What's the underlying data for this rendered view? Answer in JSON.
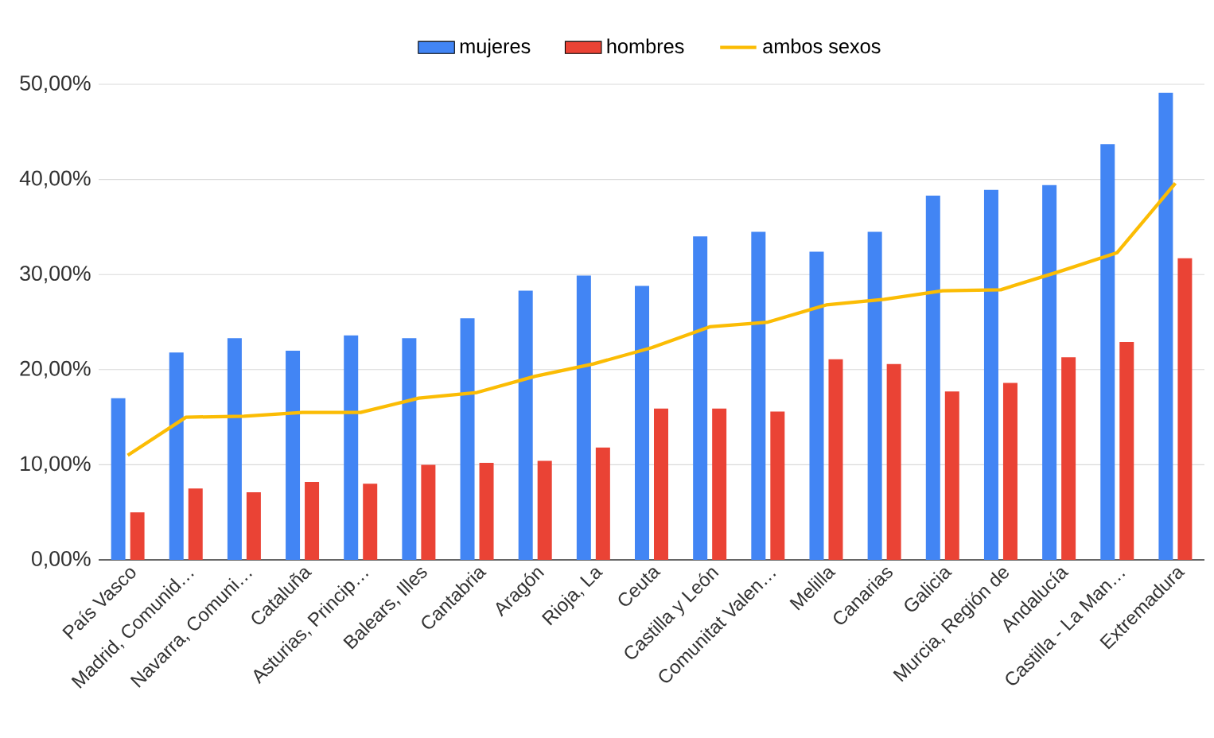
{
  "chart_data": {
    "type": "bar",
    "categories": [
      "País Vasco",
      "Madrid, Comunid…",
      "Navarra, Comuni…",
      "Cataluña",
      "Asturias, Princip…",
      "Balears, Illes",
      "Cantabria",
      "Aragón",
      "Rioja, La",
      "Ceuta",
      "Castilla y León",
      "Comunitat Valen…",
      "Melilla",
      "Canarias",
      "Galicia",
      "Murcia, Región de",
      "Andalucía",
      "Castilla - La Man…",
      "Extremadura"
    ],
    "series": [
      {
        "name": "mujeres",
        "color": "#4285f4",
        "values": [
          17.0,
          21.8,
          23.3,
          22.0,
          23.6,
          23.3,
          25.4,
          28.3,
          29.9,
          28.8,
          34.0,
          34.5,
          32.4,
          34.5,
          38.3,
          38.9,
          39.4,
          43.7,
          49.1
        ]
      },
      {
        "name": "hombres",
        "color": "#ea4335",
        "values": [
          5.0,
          7.5,
          7.1,
          8.2,
          8.0,
          10.0,
          10.2,
          10.4,
          11.8,
          15.9,
          15.9,
          15.6,
          21.1,
          20.6,
          17.7,
          18.6,
          21.3,
          22.9,
          31.7
        ]
      },
      {
        "name": "ambos sexos",
        "type": "line",
        "color": "#fbbc04",
        "values": [
          11.0,
          15.0,
          15.1,
          15.5,
          15.5,
          17.0,
          17.6,
          19.3,
          20.6,
          22.3,
          24.5,
          25.0,
          26.8,
          27.4,
          28.3,
          28.4,
          30.3,
          32.3,
          39.6
        ]
      }
    ],
    "ylim": [
      0,
      50
    ],
    "yticks": [
      {
        "value": 0,
        "label": "0,00%"
      },
      {
        "value": 10,
        "label": "10,00%"
      },
      {
        "value": 20,
        "label": "20,00%"
      },
      {
        "value": 30,
        "label": "30,00%"
      },
      {
        "value": 40,
        "label": "40,00%"
      },
      {
        "value": 50,
        "label": "50,00%"
      }
    ],
    "grid": "y",
    "legend": "top",
    "marker": "none",
    "line_style": "solid"
  }
}
